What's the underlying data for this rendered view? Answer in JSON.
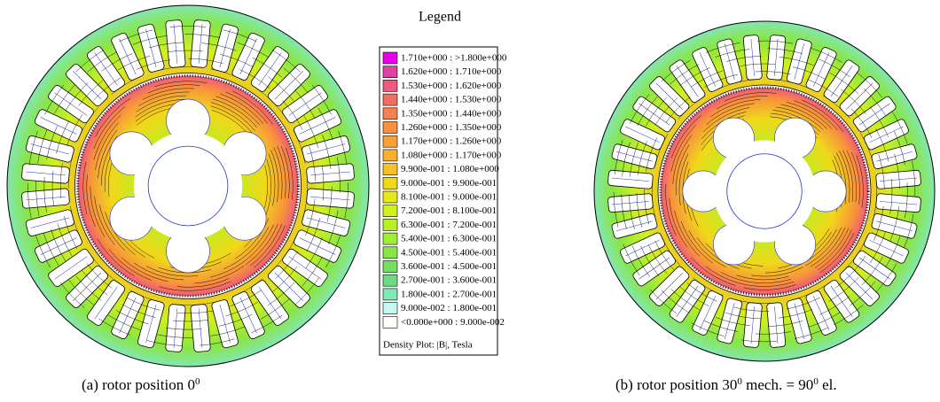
{
  "legend": {
    "title": "Legend",
    "entries": [
      {
        "label": "1.710e+000 : >1.800e+000",
        "color": "#e800e8"
      },
      {
        "label": "1.620e+000 : 1.710e+000",
        "color": "#e040a0"
      },
      {
        "label": "1.530e+000 : 1.620e+000",
        "color": "#ee5a7c"
      },
      {
        "label": "1.440e+000 : 1.530e+000",
        "color": "#f26e62"
      },
      {
        "label": "1.350e+000 : 1.440e+000",
        "color": "#f58050"
      },
      {
        "label": "1.260e+000 : 1.350e+000",
        "color": "#f8903e"
      },
      {
        "label": "1.170e+000 : 1.260e+000",
        "color": "#f9a032"
      },
      {
        "label": "1.080e+000 : 1.170e+000",
        "color": "#f9b02a"
      },
      {
        "label": "9.900e-001 : 1.080e+000",
        "color": "#f6c222"
      },
      {
        "label": "9.000e-001 : 9.900e-001",
        "color": "#f0d81a"
      },
      {
        "label": "8.100e-001 : 9.000e-001",
        "color": "#e6e818"
      },
      {
        "label": "7.200e-001 : 8.100e-001",
        "color": "#d0f020"
      },
      {
        "label": "6.300e-001 : 7.200e-001",
        "color": "#b8f024"
      },
      {
        "label": "5.400e-001 : 6.300e-001",
        "color": "#a0ee30"
      },
      {
        "label": "4.500e-001 : 5.400e-001",
        "color": "#88e644"
      },
      {
        "label": "3.600e-001 : 4.500e-001",
        "color": "#78de62"
      },
      {
        "label": "2.700e-001 : 3.600e-001",
        "color": "#70d884"
      },
      {
        "label": "1.800e-001 : 2.700e-001",
        "color": "#84e6b2"
      },
      {
        "label": "9.000e-002 : 1.800e-001",
        "color": "#c4f8f0"
      },
      {
        "label": "<0.000e+000 : 9.000e-002",
        "color": "#ffffff"
      }
    ],
    "footer": "Density Plot: |B|, Tesla"
  },
  "captions": [
    {
      "parts": [
        {
          "text": "(a) rotor position 0"
        },
        {
          "sup": "0"
        }
      ]
    },
    {
      "parts": [
        {
          "text": "(b) rotor position 30"
        },
        {
          "sup": "0"
        },
        {
          "text": " mech. = 90"
        },
        {
          "sup": "0"
        },
        {
          "text": " el."
        }
      ]
    }
  ]
}
